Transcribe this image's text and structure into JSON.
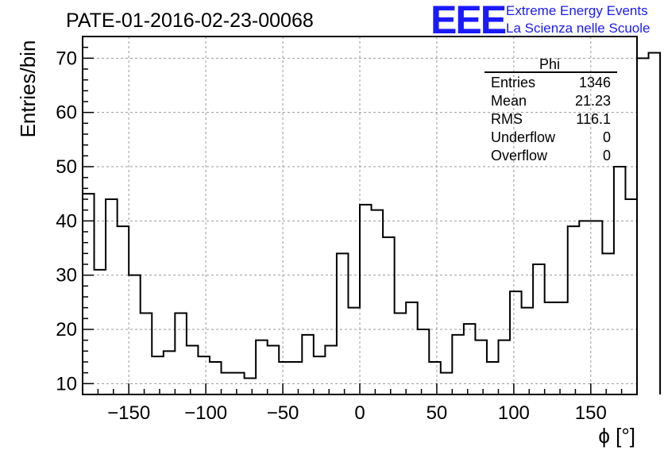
{
  "header": {
    "title": "PATE-01-2016-02-23-00068",
    "logo": "EEE",
    "logo_line1": "Extreme Energy Events",
    "logo_line2": "La Scienza nelle Scuole"
  },
  "stats_box": {
    "name": "Phi",
    "rows": [
      {
        "label": "Entries",
        "value": "1346"
      },
      {
        "label": "Mean",
        "value": "21.23"
      },
      {
        "label": "RMS",
        "value": "116.1"
      },
      {
        "label": "Underflow",
        "value": "0"
      },
      {
        "label": "Overflow",
        "value": "0"
      }
    ]
  },
  "chart_data": {
    "type": "histogram-step",
    "xlabel": "ϕ [°]",
    "ylabel": "Entries/bin",
    "xlim": [
      -180,
      180
    ],
    "ylim": [
      8,
      74
    ],
    "grid": true,
    "x_ticks": [
      -150,
      -100,
      -50,
      0,
      50,
      100,
      150
    ],
    "x_tick_labels": [
      "−150",
      "−100",
      "−50",
      "0",
      "50",
      "100",
      "150"
    ],
    "y_ticks": [
      10,
      20,
      30,
      40,
      50,
      60,
      70
    ],
    "y_tick_labels": [
      "10",
      "20",
      "30",
      "40",
      "50",
      "60",
      "70"
    ],
    "bin_width": 7.5,
    "bin_edges_start": -180,
    "values": [
      45,
      31,
      44,
      39,
      30,
      23,
      15,
      16,
      23,
      17,
      15,
      14,
      12,
      12,
      11,
      18,
      17,
      14,
      14,
      19,
      15,
      17,
      34,
      24,
      43,
      42,
      37,
      23,
      25,
      20,
      14,
      12,
      19,
      21,
      18,
      14,
      18,
      27,
      24,
      32,
      25,
      25,
      39,
      40,
      40,
      34,
      50,
      44,
      70,
      71
    ]
  }
}
